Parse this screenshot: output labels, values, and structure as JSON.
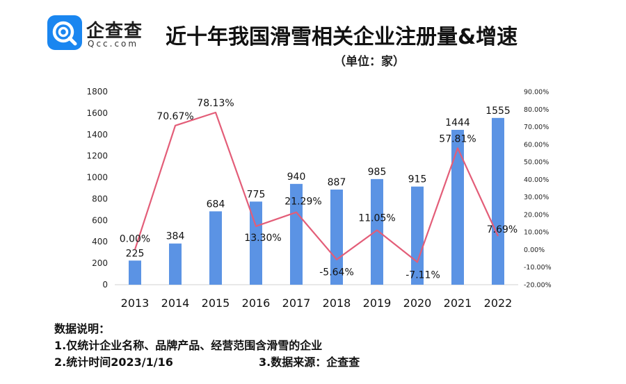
{
  "header": {
    "logo_name": "企查查",
    "logo_url": "Qcc.com",
    "title": "近十年我国滑雪相关企业注册量&增速",
    "subtitle": "（单位：家）"
  },
  "colors": {
    "bar": "#5b93e4",
    "line": "#e35d78",
    "logo_bg": "#1a86f0"
  },
  "icons": {
    "logo": "qcc-logo-icon"
  },
  "chart_data": {
    "type": "bar",
    "categories": [
      "2013",
      "2014",
      "2015",
      "2016",
      "2017",
      "2018",
      "2019",
      "2020",
      "2021",
      "2022"
    ],
    "series": [
      {
        "type": "bar",
        "axis": "left",
        "values": [
          225,
          384,
          684,
          775,
          940,
          887,
          985,
          915,
          1444,
          1555
        ]
      },
      {
        "type": "line",
        "axis": "right",
        "values": [
          0.0,
          70.67,
          78.13,
          13.3,
          21.29,
          -5.64,
          11.05,
          -7.11,
          57.81,
          7.69
        ],
        "labels": [
          "0.00%",
          "70.67%",
          "78.13%",
          "13.30%",
          "21.29%",
          "-5.64%",
          "11.05%",
          "-7.11%",
          "57.81%",
          "7.69%"
        ]
      }
    ],
    "y_left": {
      "range": [
        0,
        1800
      ],
      "ticks": [
        "0",
        "200",
        "400",
        "600",
        "800",
        "1000",
        "1200",
        "1400",
        "1600",
        "1800"
      ]
    },
    "y_right": {
      "range": [
        -20,
        90
      ],
      "ticks": [
        "-20.00%",
        "-10.00%",
        "0.00%",
        "10.00%",
        "20.00%",
        "30.00%",
        "40.00%",
        "50.00%",
        "60.00%",
        "70.00%",
        "80.00%",
        "90.00%"
      ]
    },
    "grid": false,
    "legend": "none"
  },
  "notes": {
    "heading": "数据说明：",
    "item1": "1.仅统计企业名称、品牌产品、经营范围含滑雪的企业",
    "item2": "2.统计时间2023/1/16",
    "item3": "3.数据来源：企查查"
  }
}
